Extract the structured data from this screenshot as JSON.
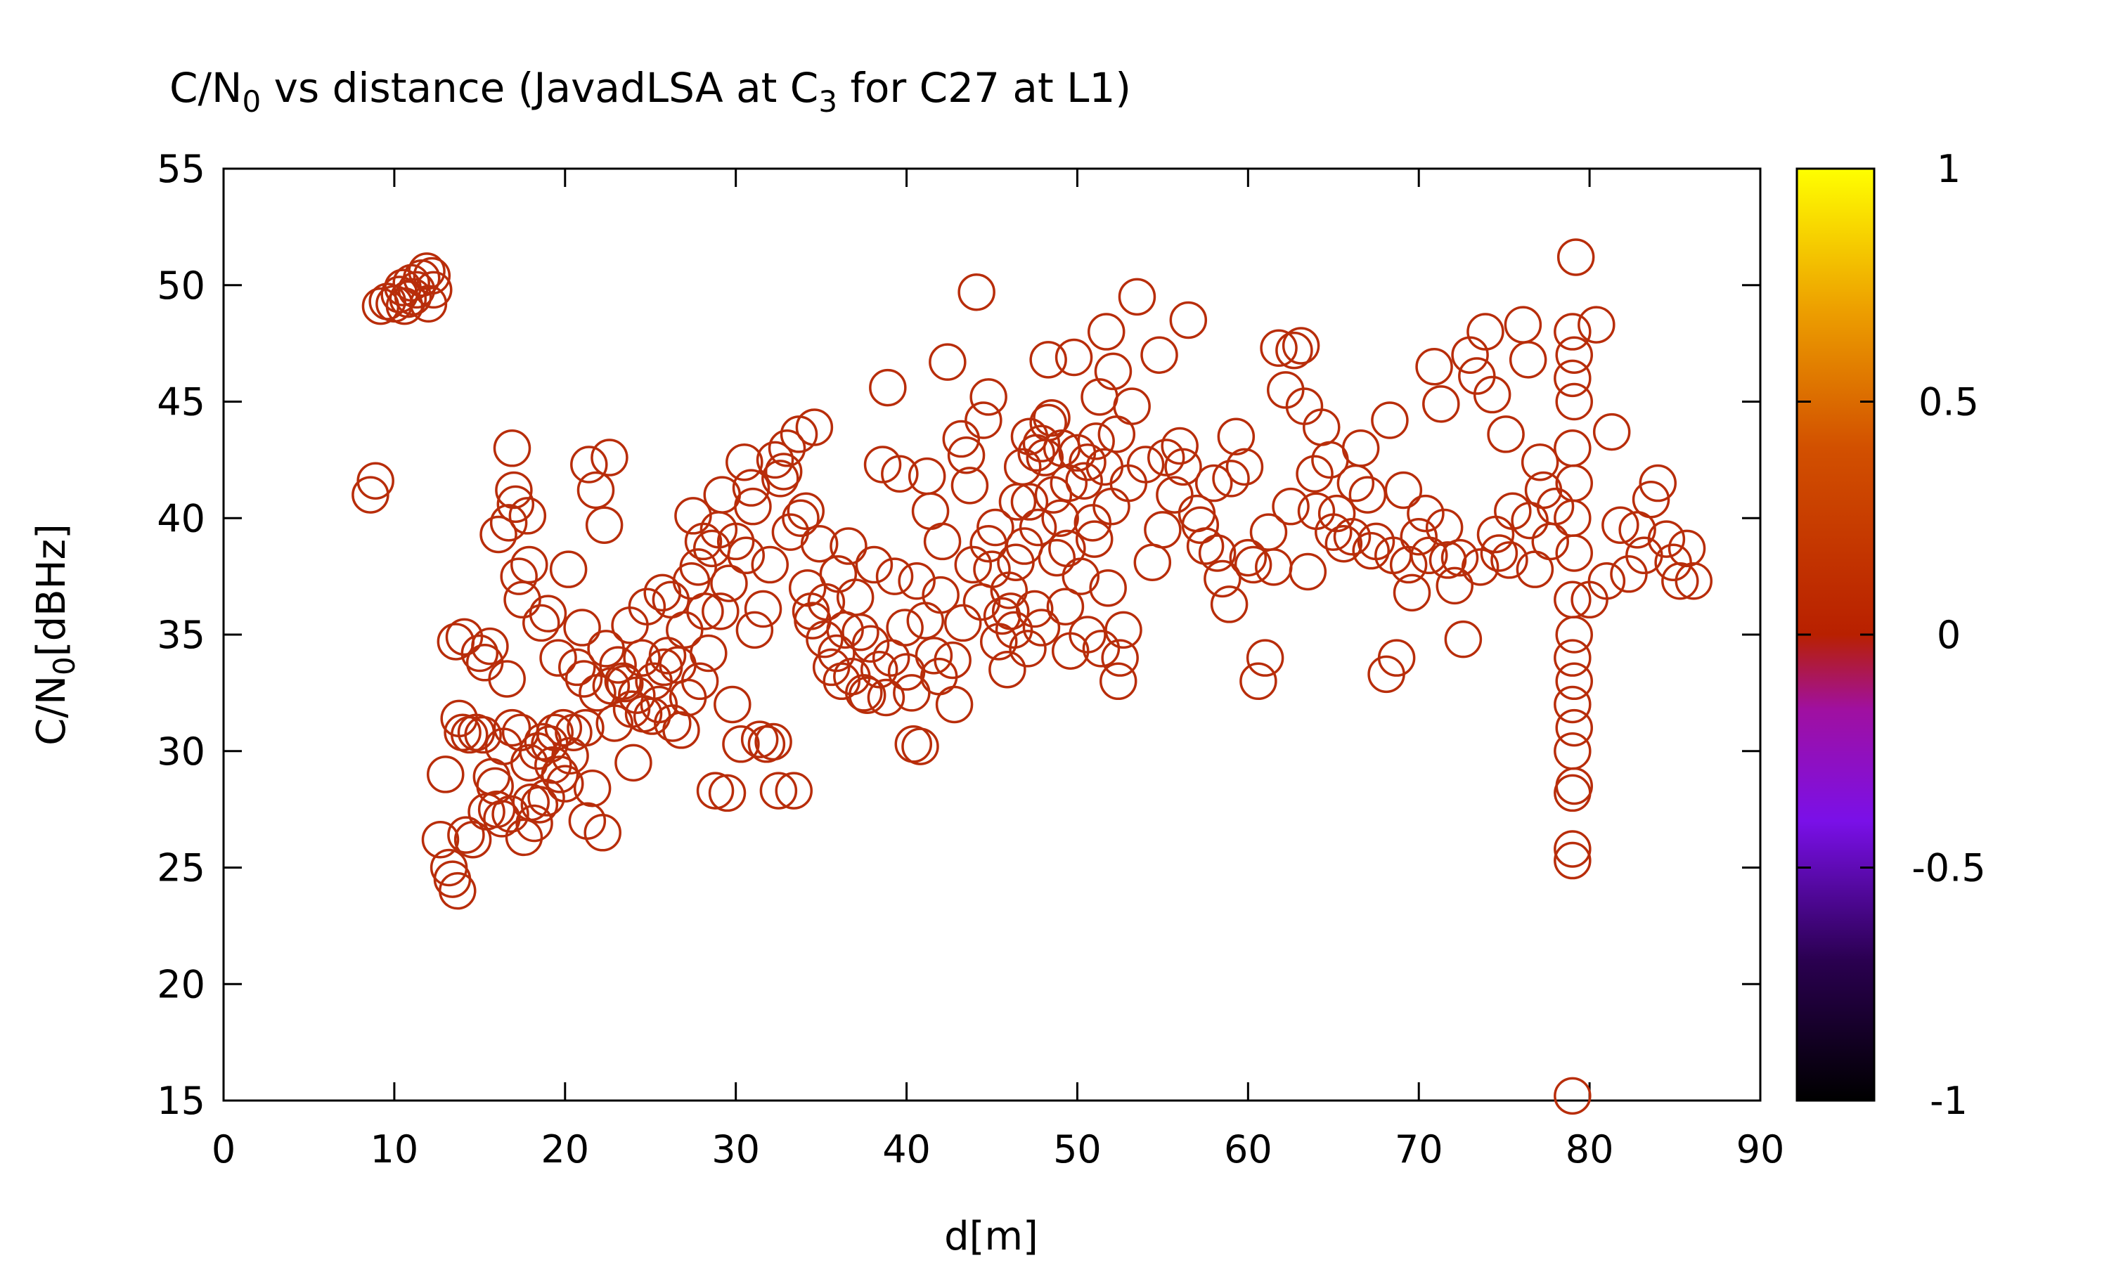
{
  "chart_data": {
    "type": "scatter",
    "title": "C/N",
    "title_sub1": "0",
    "title_mid": " vs distance (JavadLSA at C",
    "title_sub2": "3",
    "title_end": " for C27 at L1)",
    "xlabel": "d[m]",
    "ylabel_main": "C/N",
    "ylabel_sub": "0",
    "ylabel_end": "[dBHz]",
    "xlim": [
      0,
      90
    ],
    "ylim": [
      15,
      55
    ],
    "x_ticks": [
      "0",
      "10",
      "20",
      "30",
      "40",
      "50",
      "60",
      "70",
      "80",
      "90"
    ],
    "y_ticks": [
      "15",
      "20",
      "25",
      "30",
      "35",
      "40",
      "45",
      "50",
      "55"
    ],
    "marker": "open-circle",
    "marker_color": "#b82d0a",
    "colorbar": {
      "range": [
        -1,
        1
      ],
      "ticks": [
        "-1",
        "-0.5",
        "0",
        "0.5",
        "1"
      ],
      "palette": [
        "#000000",
        "#3a0070",
        "#8a10f0",
        "#b00090",
        "#c02000",
        "#e07000",
        "#ffff00"
      ]
    },
    "points": [
      [
        8.6,
        41.0
      ],
      [
        8.9,
        41.6
      ],
      [
        9.2,
        49.1
      ],
      [
        9.6,
        49.3
      ],
      [
        10.0,
        49.2
      ],
      [
        10.3,
        49.6
      ],
      [
        10.5,
        49.9
      ],
      [
        10.8,
        49.4
      ],
      [
        11.0,
        50.1
      ],
      [
        11.3,
        49.8
      ],
      [
        11.6,
        50.3
      ],
      [
        11.9,
        50.6
      ],
      [
        12.0,
        49.2
      ],
      [
        12.2,
        50.4
      ],
      [
        12.3,
        49.8
      ],
      [
        10.6,
        49.1
      ],
      [
        11.1,
        49.5
      ],
      [
        12.7,
        26.2
      ],
      [
        13.0,
        29.0
      ],
      [
        13.2,
        25.0
      ],
      [
        13.4,
        24.5
      ],
      [
        13.7,
        24.0
      ],
      [
        13.6,
        34.7
      ],
      [
        14.1,
        34.9
      ],
      [
        13.8,
        31.4
      ],
      [
        14.0,
        30.8
      ],
      [
        14.4,
        30.7
      ],
      [
        14.8,
        30.8
      ],
      [
        15.0,
        34.2
      ],
      [
        15.3,
        33.8
      ],
      [
        15.6,
        34.5
      ],
      [
        14.2,
        26.4
      ],
      [
        14.6,
        26.2
      ],
      [
        15.2,
        30.7
      ],
      [
        15.7,
        28.9
      ],
      [
        16.0,
        27.5
      ],
      [
        16.3,
        27.1
      ],
      [
        16.1,
        39.3
      ],
      [
        16.7,
        39.8
      ],
      [
        16.9,
        43.0
      ],
      [
        17.1,
        40.6
      ],
      [
        17.0,
        41.2
      ],
      [
        17.3,
        37.5
      ],
      [
        17.5,
        36.5
      ],
      [
        17.9,
        38.0
      ],
      [
        17.8,
        40.1
      ],
      [
        16.6,
        33.1
      ],
      [
        18.2,
        26.9
      ],
      [
        18.5,
        27.7
      ],
      [
        18.7,
        30.4
      ],
      [
        19.1,
        30.3
      ],
      [
        19.3,
        29.4
      ],
      [
        19.0,
        35.9
      ],
      [
        19.6,
        34.0
      ],
      [
        19.9,
        31.0
      ],
      [
        20.2,
        37.8
      ],
      [
        20.0,
        28.6
      ],
      [
        20.5,
        30.8
      ],
      [
        21.1,
        33.1
      ],
      [
        21.3,
        27.0
      ],
      [
        21.6,
        28.4
      ],
      [
        21.4,
        42.3
      ],
      [
        21.8,
        41.2
      ],
      [
        22.2,
        26.5
      ],
      [
        22.6,
        42.6
      ],
      [
        22.3,
        39.7
      ],
      [
        22.7,
        32.8
      ],
      [
        23.1,
        33.7
      ],
      [
        23.4,
        33.0
      ],
      [
        23.8,
        35.4
      ],
      [
        24.2,
        32.4
      ],
      [
        24.0,
        29.5
      ],
      [
        24.6,
        31.6
      ],
      [
        24.8,
        36.2
      ],
      [
        25.2,
        33.0
      ],
      [
        25.5,
        32.0
      ],
      [
        26.0,
        34.1
      ],
      [
        26.3,
        31.2
      ],
      [
        26.6,
        33.7
      ],
      [
        27.0,
        35.2
      ],
      [
        27.4,
        37.3
      ],
      [
        27.9,
        33.0
      ],
      [
        28.2,
        36.0
      ],
      [
        28.6,
        38.7
      ],
      [
        29.0,
        39.5
      ],
      [
        29.2,
        41.0
      ],
      [
        28.8,
        28.3
      ],
      [
        29.5,
        28.2
      ],
      [
        29.8,
        32.0
      ],
      [
        30.3,
        30.3
      ],
      [
        30.6,
        38.4
      ],
      [
        31.1,
        35.2
      ],
      [
        31.4,
        30.5
      ],
      [
        31.8,
        30.3
      ],
      [
        32.2,
        30.4
      ],
      [
        32.5,
        28.3
      ],
      [
        32.8,
        42.0
      ],
      [
        33.4,
        28.3
      ],
      [
        33.7,
        43.6
      ],
      [
        34.1,
        40.3
      ],
      [
        34.6,
        43.9
      ],
      [
        34.4,
        36.0
      ],
      [
        35.2,
        34.8
      ],
      [
        35.6,
        33.6
      ],
      [
        36.0,
        37.6
      ],
      [
        36.4,
        35.2
      ],
      [
        36.8,
        33.2
      ],
      [
        37.3,
        35.1
      ],
      [
        37.7,
        32.4
      ],
      [
        38.1,
        38.0
      ],
      [
        38.6,
        42.3
      ],
      [
        38.9,
        45.6
      ],
      [
        39.3,
        37.5
      ],
      [
        39.6,
        41.9
      ],
      [
        40.0,
        33.4
      ],
      [
        40.4,
        30.3
      ],
      [
        40.8,
        30.2
      ],
      [
        41.2,
        41.8
      ],
      [
        41.6,
        34.1
      ],
      [
        42.0,
        36.7
      ],
      [
        42.4,
        46.7
      ],
      [
        42.8,
        32.0
      ],
      [
        43.2,
        43.4
      ],
      [
        43.7,
        41.4
      ],
      [
        44.1,
        49.7
      ],
      [
        44.5,
        44.2
      ],
      [
        44.8,
        38.9
      ],
      [
        45.2,
        39.6
      ],
      [
        45.6,
        35.8
      ],
      [
        46.0,
        36.9
      ],
      [
        46.4,
        38.1
      ],
      [
        46.8,
        42.2
      ],
      [
        47.2,
        40.7
      ],
      [
        47.5,
        36.1
      ],
      [
        47.9,
        43.2
      ],
      [
        48.3,
        44.1
      ],
      [
        48.6,
        41.0
      ],
      [
        49.0,
        40.0
      ],
      [
        49.4,
        38.7
      ],
      [
        49.8,
        46.9
      ],
      [
        50.2,
        37.5
      ],
      [
        50.6,
        42.4
      ],
      [
        51.0,
        39.1
      ],
      [
        51.3,
        45.2
      ],
      [
        51.7,
        48.0
      ],
      [
        52.1,
        46.3
      ],
      [
        52.4,
        33.0
      ],
      [
        52.7,
        35.2
      ],
      [
        53.2,
        44.8
      ],
      [
        53.5,
        49.5
      ],
      [
        54.0,
        42.3
      ],
      [
        54.4,
        38.1
      ],
      [
        54.8,
        47.0
      ],
      [
        55.2,
        42.6
      ],
      [
        55.7,
        41.0
      ],
      [
        56.0,
        43.1
      ],
      [
        56.5,
        48.5
      ],
      [
        57.0,
        40.2
      ],
      [
        57.5,
        38.8
      ],
      [
        58.0,
        41.5
      ],
      [
        58.5,
        37.4
      ],
      [
        58.9,
        36.3
      ],
      [
        59.3,
        43.5
      ],
      [
        59.8,
        42.2
      ],
      [
        60.3,
        38.0
      ],
      [
        60.6,
        33.0
      ],
      [
        61.0,
        34.0
      ],
      [
        61.5,
        37.9
      ],
      [
        61.8,
        47.3
      ],
      [
        62.2,
        45.5
      ],
      [
        62.7,
        47.2
      ],
      [
        63.1,
        47.4
      ],
      [
        63.5,
        37.7
      ],
      [
        63.9,
        41.9
      ],
      [
        64.3,
        43.9
      ],
      [
        64.8,
        42.5
      ],
      [
        65.2,
        40.2
      ],
      [
        65.6,
        38.9
      ],
      [
        66.1,
        39.2
      ],
      [
        66.6,
        43.0
      ],
      [
        67.0,
        41.0
      ],
      [
        67.5,
        39.0
      ],
      [
        68.1,
        33.3
      ],
      [
        68.3,
        44.2
      ],
      [
        68.7,
        34.0
      ],
      [
        69.1,
        41.2
      ],
      [
        69.6,
        36.8
      ],
      [
        70.0,
        39.2
      ],
      [
        70.4,
        40.2
      ],
      [
        70.9,
        46.5
      ],
      [
        71.3,
        44.9
      ],
      [
        71.7,
        38.2
      ],
      [
        72.1,
        37.1
      ],
      [
        72.6,
        34.8
      ],
      [
        73.0,
        47.0
      ],
      [
        73.4,
        46.1
      ],
      [
        73.9,
        48.0
      ],
      [
        74.3,
        45.3
      ],
      [
        74.7,
        38.5
      ],
      [
        75.1,
        43.6
      ],
      [
        75.5,
        40.3
      ],
      [
        76.1,
        48.3
      ],
      [
        76.4,
        46.8
      ],
      [
        76.8,
        37.8
      ],
      [
        77.3,
        41.2
      ],
      [
        77.7,
        39.0
      ],
      [
        79.0,
        15.2
      ],
      [
        79.0,
        25.3
      ],
      [
        79.0,
        25.8
      ],
      [
        79.0,
        28.2
      ],
      [
        79.1,
        28.5
      ],
      [
        79.0,
        30.0
      ],
      [
        79.1,
        31.0
      ],
      [
        79.0,
        32.0
      ],
      [
        79.1,
        33.0
      ],
      [
        79.0,
        34.0
      ],
      [
        79.1,
        35.0
      ],
      [
        79.0,
        36.5
      ],
      [
        79.1,
        38.5
      ],
      [
        79.0,
        40.0
      ],
      [
        79.1,
        41.5
      ],
      [
        79.0,
        43.0
      ],
      [
        79.1,
        45.0
      ],
      [
        79.0,
        46.0
      ],
      [
        79.1,
        47.0
      ],
      [
        79.0,
        48.0
      ],
      [
        79.2,
        51.2
      ],
      [
        80.0,
        36.5
      ],
      [
        80.4,
        48.3
      ],
      [
        81.0,
        37.3
      ],
      [
        81.3,
        43.7
      ],
      [
        81.8,
        39.7
      ],
      [
        82.3,
        37.6
      ],
      [
        82.8,
        39.5
      ],
      [
        83.2,
        38.4
      ],
      [
        83.6,
        40.8
      ],
      [
        84.0,
        41.5
      ],
      [
        84.5,
        39.1
      ],
      [
        84.9,
        38.1
      ],
      [
        85.3,
        37.3
      ],
      [
        85.7,
        38.7
      ],
      [
        86.1,
        37.3
      ],
      [
        47.2,
        43.5
      ],
      [
        47.6,
        42.8
      ],
      [
        48.1,
        42.6
      ],
      [
        48.5,
        44.3
      ],
      [
        49.1,
        43.0
      ],
      [
        49.5,
        41.5
      ],
      [
        50.0,
        42.8
      ],
      [
        50.4,
        41.6
      ],
      [
        51.1,
        43.3
      ],
      [
        51.6,
        42.2
      ],
      [
        52.0,
        40.5
      ],
      [
        52.3,
        43.6
      ],
      [
        46.5,
        40.7
      ],
      [
        46.9,
        38.8
      ],
      [
        47.7,
        39.6
      ],
      [
        48.8,
        38.3
      ],
      [
        49.3,
        36.2
      ],
      [
        50.6,
        35.0
      ],
      [
        51.4,
        34.4
      ],
      [
        46.3,
        35.2
      ],
      [
        45.9,
        33.5
      ],
      [
        45.0,
        37.8
      ],
      [
        44.4,
        36.4
      ],
      [
        43.9,
        38.0
      ],
      [
        43.3,
        35.5
      ],
      [
        42.7,
        33.9
      ],
      [
        41.9,
        33.2
      ],
      [
        41.1,
        35.6
      ],
      [
        40.6,
        37.3
      ],
      [
        39.9,
        35.3
      ],
      [
        39.1,
        34.0
      ],
      [
        38.4,
        33.5
      ],
      [
        37.9,
        34.6
      ],
      [
        37.0,
        36.6
      ],
      [
        36.6,
        38.8
      ],
      [
        35.9,
        34.2
      ],
      [
        35.3,
        36.4
      ],
      [
        34.9,
        38.9
      ],
      [
        34.2,
        37.0
      ],
      [
        33.8,
        40.0
      ],
      [
        33.2,
        39.4
      ],
      [
        32.6,
        41.7
      ],
      [
        32.0,
        38.0
      ],
      [
        31.6,
        36.1
      ],
      [
        31.0,
        40.5
      ],
      [
        30.5,
        42.4
      ],
      [
        30.0,
        39.0
      ],
      [
        29.6,
        37.2
      ],
      [
        29.1,
        36.0
      ],
      [
        28.4,
        34.2
      ],
      [
        27.8,
        37.9
      ],
      [
        27.2,
        32.3
      ],
      [
        26.8,
        30.9
      ],
      [
        26.2,
        36.5
      ],
      [
        25.8,
        33.6
      ],
      [
        25.1,
        31.5
      ],
      [
        24.5,
        34.0
      ],
      [
        23.9,
        31.8
      ],
      [
        23.5,
        32.9
      ],
      [
        22.9,
        31.2
      ],
      [
        22.4,
        34.4
      ],
      [
        21.9,
        32.5
      ],
      [
        21.2,
        31.0
      ],
      [
        20.7,
        33.6
      ],
      [
        20.3,
        29.8
      ],
      [
        19.7,
        29.0
      ],
      [
        19.4,
        30.8
      ],
      [
        18.9,
        28.0
      ],
      [
        18.4,
        30.0
      ],
      [
        17.9,
        29.5
      ],
      [
        17.4,
        30.8
      ],
      [
        16.9,
        31.0
      ],
      [
        16.4,
        30.2
      ],
      [
        15.9,
        28.5
      ],
      [
        15.4,
        27.4
      ],
      [
        16.8,
        27.3
      ],
      [
        17.6,
        26.3
      ],
      [
        18.0,
        27.8
      ],
      [
        18.6,
        35.5
      ],
      [
        21.0,
        35.3
      ],
      [
        25.7,
        36.8
      ],
      [
        27.5,
        40.1
      ],
      [
        28.1,
        39.0
      ],
      [
        30.9,
        41.3
      ],
      [
        32.3,
        42.5
      ],
      [
        33.0,
        43.0
      ],
      [
        34.5,
        35.6
      ],
      [
        36.2,
        33.0
      ],
      [
        37.5,
        32.5
      ],
      [
        38.8,
        32.3
      ],
      [
        40.3,
        32.5
      ],
      [
        41.4,
        40.3
      ],
      [
        42.1,
        39.0
      ],
      [
        43.5,
        42.7
      ],
      [
        44.8,
        45.2
      ],
      [
        45.4,
        34.7
      ],
      [
        46.1,
        36.0
      ],
      [
        47.1,
        34.4
      ],
      [
        47.9,
        35.3
      ],
      [
        48.3,
        46.8
      ],
      [
        49.6,
        34.3
      ],
      [
        50.9,
        39.8
      ],
      [
        51.8,
        37.0
      ],
      [
        52.5,
        34.0
      ],
      [
        53.0,
        41.5
      ],
      [
        55.0,
        39.5
      ],
      [
        56.2,
        42.2
      ],
      [
        57.2,
        39.7
      ],
      [
        58.2,
        38.5
      ],
      [
        59.0,
        41.7
      ],
      [
        60.0,
        38.3
      ],
      [
        61.2,
        39.4
      ],
      [
        62.5,
        40.5
      ],
      [
        63.3,
        44.8
      ],
      [
        64.0,
        40.3
      ],
      [
        65.0,
        39.4
      ],
      [
        66.3,
        41.5
      ],
      [
        67.2,
        38.6
      ],
      [
        68.5,
        38.4
      ],
      [
        69.4,
        38.0
      ],
      [
        70.6,
        38.4
      ],
      [
        71.5,
        39.6
      ],
      [
        72.4,
        38.3
      ],
      [
        73.6,
        37.9
      ],
      [
        74.5,
        39.3
      ],
      [
        75.3,
        38.2
      ],
      [
        76.5,
        39.9
      ],
      [
        77.1,
        42.4
      ],
      [
        78.0,
        40.5
      ]
    ]
  }
}
